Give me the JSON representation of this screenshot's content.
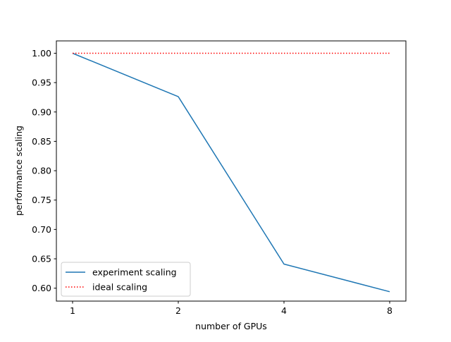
{
  "chart_data": {
    "type": "line",
    "title": "",
    "xlabel": "number of GPUs",
    "ylabel": "performance scaling",
    "categories": [
      "1",
      "2",
      "4",
      "8"
    ],
    "ylim": [
      0.578,
      1.021
    ],
    "yticks": [
      "0.60",
      "0.65",
      "0.70",
      "0.75",
      "0.80",
      "0.85",
      "0.90",
      "0.95",
      "1.00"
    ],
    "series": [
      {
        "name": "experiment scaling",
        "values": [
          1.0,
          0.926,
          0.641,
          0.594
        ],
        "color": "#1f77b4",
        "style": "solid"
      },
      {
        "name": "ideal scaling",
        "values": [
          1.0,
          1.0,
          1.0,
          1.0
        ],
        "color": "#ff0000",
        "style": "dotted"
      }
    ],
    "legend": "lower-left",
    "grid": false
  }
}
